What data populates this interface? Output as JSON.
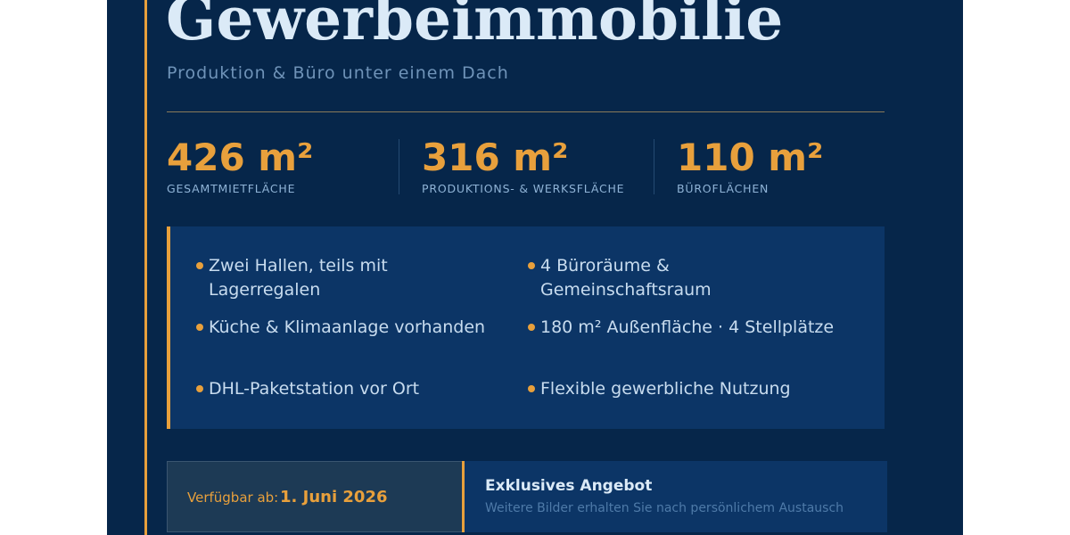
{
  "header": {
    "title": "Gewerbeimmobilie",
    "subtitle": "Produktion & Büro unter einem Dach"
  },
  "stats": [
    {
      "value": "426 m²",
      "label": "GESAMTMIETFLÄCHE"
    },
    {
      "value": "316 m²",
      "label": "PRODUKTIONS- & WERKSFLÄCHE"
    },
    {
      "value": "110 m²",
      "label": "BÜROFLÄCHEN"
    }
  ],
  "features": [
    "Zwei Hallen, teils mit Lagerregalen",
    "4 Büroräume & Gemeinschaftsraum",
    "Küche & Klimaanlage vorhanden",
    "180 m² Außenfläche · 4 Stellplätze",
    "DHL-Paketstation vor Ort",
    "Flexible gewerbliche Nutzung"
  ],
  "availability": {
    "label": "Verfügbar ab:",
    "date": "1. Juni 2026"
  },
  "offer": {
    "title": "Exklusives Angebot",
    "text": "Weitere Bilder erhalten Sie nach persönlichem Austausch"
  }
}
